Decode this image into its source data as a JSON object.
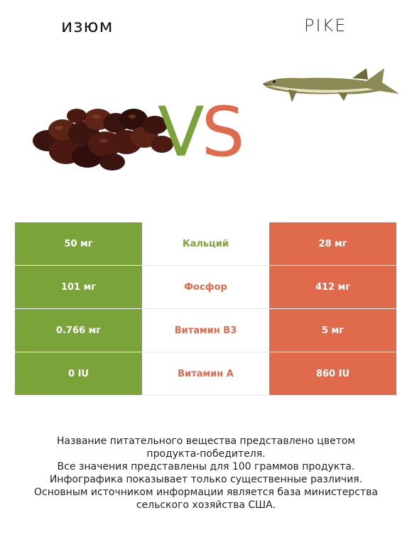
{
  "left_food": {
    "name": "изюм"
  },
  "right_food": {
    "name": "PIKE"
  },
  "vs": {
    "v": "V",
    "s": "S"
  },
  "colors": {
    "left": "#7aa33a",
    "right": "#e06a4c"
  },
  "rows": [
    {
      "left": "50 мг",
      "nutrient": "Кальций",
      "right": "28 мг",
      "winner": "left"
    },
    {
      "left": "101 мг",
      "nutrient": "Фосфор",
      "right": "412 мг",
      "winner": "right"
    },
    {
      "left": "0.766 мг",
      "nutrient": "Витамин B3",
      "right": "5 мг",
      "winner": "right"
    },
    {
      "left": "0 IU",
      "nutrient": "Витамин A",
      "right": "860 IU",
      "winner": "right"
    }
  ],
  "footer": {
    "line1": "Название питательного вещества представлено цветом",
    "line2": "продукта-победителя.",
    "line3": "Все значения представлены для 100 граммов продукта.",
    "line4": "Инфографика показывает только существенные различия.",
    "line5": "Основным источником информации является база министерства",
    "line6": "сельского хозяйства США."
  }
}
